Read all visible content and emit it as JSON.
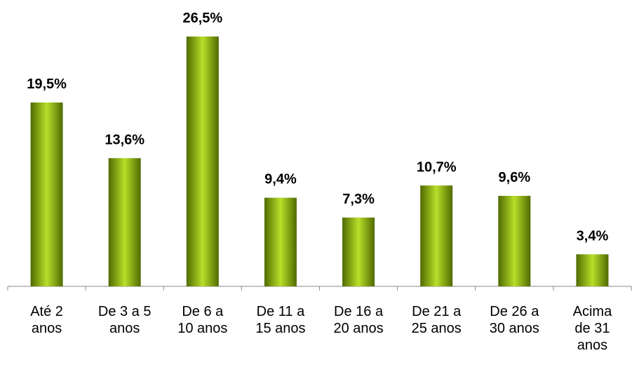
{
  "chart_data": {
    "type": "bar",
    "categories": [
      "Até 2\nanos",
      "De 3 a 5\nanos",
      "De 6 a\n10 anos",
      "De 11 a\n15 anos",
      "De 16 a\n20 anos",
      "De 21 a\n25 anos",
      "De 26 a\n30 anos",
      "Acima\nde 31\nanos"
    ],
    "values": [
      19.5,
      13.6,
      26.5,
      9.4,
      7.3,
      10.7,
      9.6,
      3.4
    ],
    "value_labels": [
      "19,5%",
      "13,6%",
      "26,5%",
      "9,4%",
      "7,3%",
      "10,7%",
      "9,6%",
      "3,4%"
    ],
    "color": "#8db510",
    "ylim": [
      0,
      30
    ]
  }
}
